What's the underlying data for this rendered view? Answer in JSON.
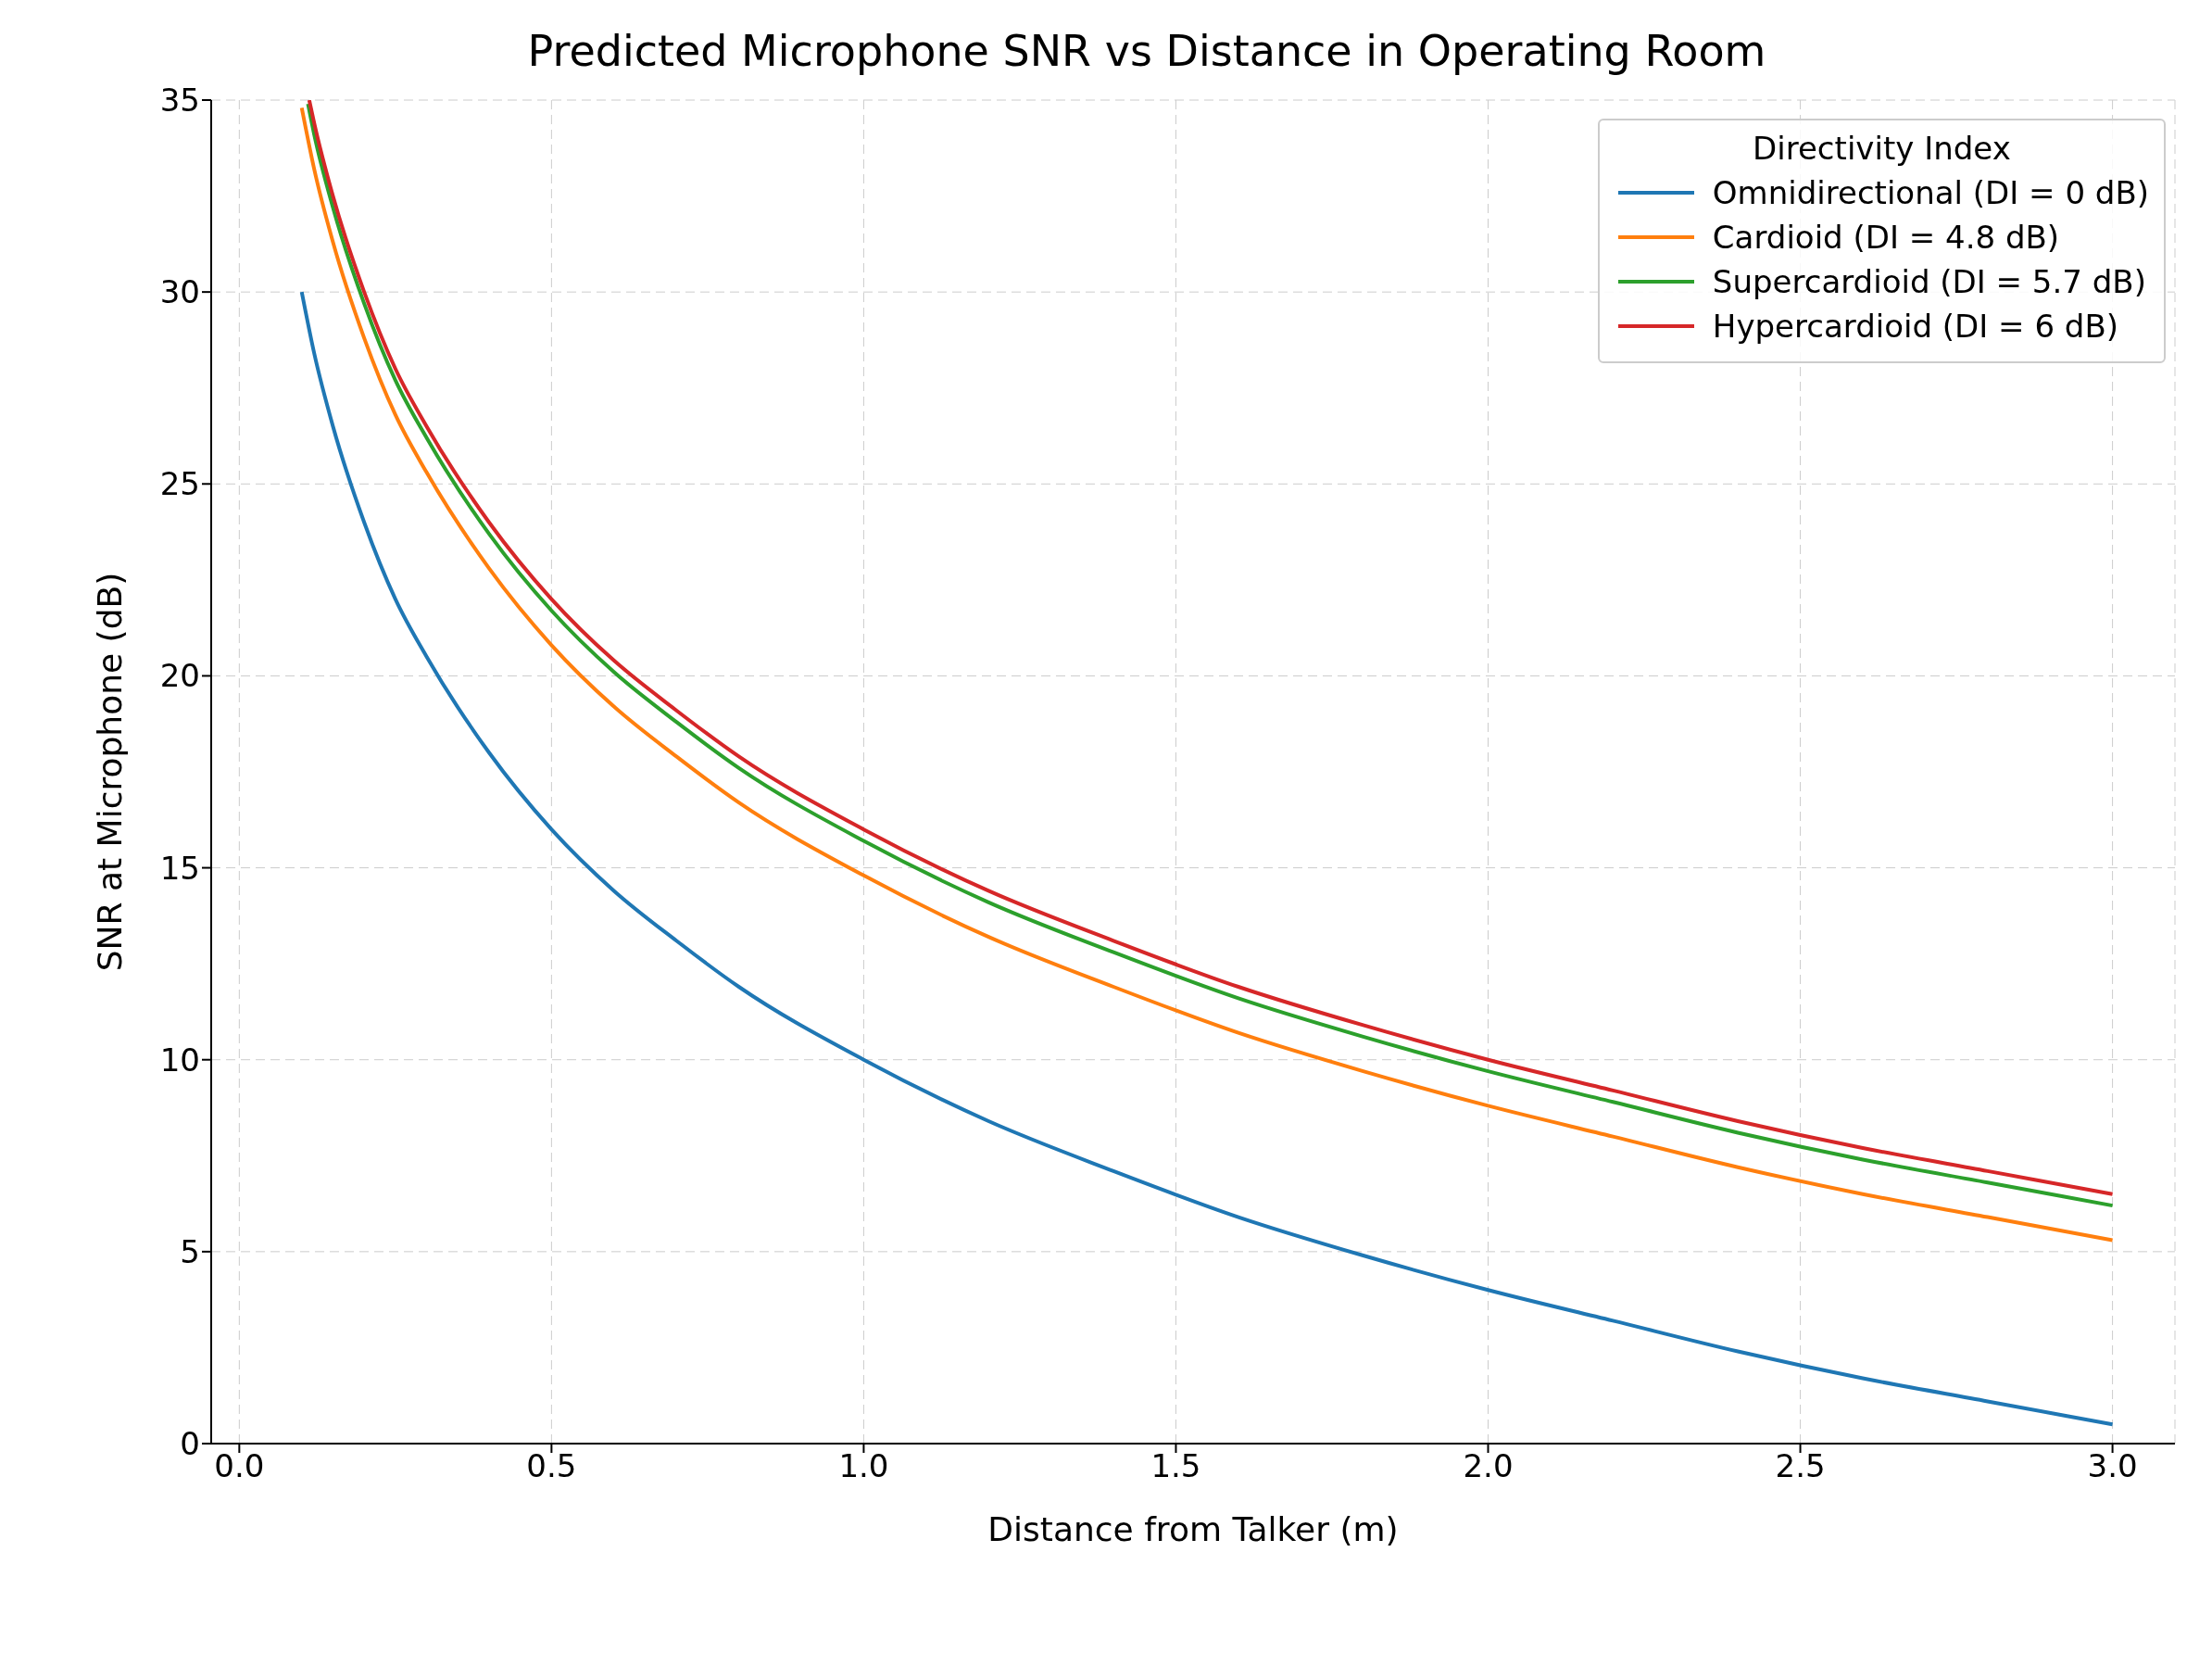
{
  "chart_data": {
    "type": "line",
    "title": "Predicted Microphone SNR vs Distance in Operating Room",
    "xlabel": "Distance from Talker (m)",
    "ylabel": "SNR at Microphone (dB)",
    "legend_title": "Directivity Index",
    "xlim": [
      -0.045,
      3.1
    ],
    "xticks": [
      {
        "value": 0,
        "label": "0.0"
      },
      0.5,
      {
        "value": 1,
        "label": "1.0"
      },
      1.5,
      {
        "value": 2,
        "label": "2.0"
      },
      2.5,
      {
        "value": 3,
        "label": "3.0"
      }
    ],
    "ylim": [
      0,
      35
    ],
    "yticks": [
      0,
      5,
      10,
      15,
      20,
      25,
      30,
      35
    ],
    "grid": true,
    "legend": "top right",
    "marker": "none",
    "line_style": "solid",
    "series": [
      {
        "name": "Omnidirectional (DI = 0 dB)",
        "color": "#1f77b4",
        "x": [
          0.1,
          0.12,
          0.15,
          0.2,
          0.25,
          0.3,
          0.4,
          0.5,
          0.6,
          0.7,
          0.8,
          1.0,
          1.2,
          1.4,
          1.6,
          1.8,
          2.0,
          2.2,
          2.4,
          2.6,
          2.8,
          3.0
        ],
        "values": [
          30,
          28.4,
          26.5,
          24.0,
          22.0,
          20.5,
          18.0,
          16.0,
          14.4,
          13.1,
          11.9,
          10.0,
          8.4,
          7.1,
          5.9,
          4.9,
          4.0,
          3.2,
          2.4,
          1.7,
          1.1,
          0.5
        ]
      },
      {
        "name": "Cardioid (DI = 4.8 dB)",
        "color": "#ff7f0e",
        "x": [
          0.1,
          0.12,
          0.15,
          0.2,
          0.25,
          0.3,
          0.4,
          0.5,
          0.6,
          0.7,
          0.8,
          1.0,
          1.2,
          1.4,
          1.6,
          1.8,
          2.0,
          2.2,
          2.4,
          2.6,
          2.8,
          3.0
        ],
        "values": [
          34.8,
          33.2,
          31.3,
          28.8,
          26.8,
          25.3,
          22.8,
          20.8,
          19.2,
          17.9,
          16.7,
          14.8,
          13.2,
          11.9,
          10.7,
          9.7,
          8.8,
          8.0,
          7.2,
          6.5,
          5.9,
          5.3
        ]
      },
      {
        "name": "Supercardioid (DI = 5.7 dB)",
        "color": "#2ca02c",
        "x": [
          0.11,
          0.12,
          0.15,
          0.2,
          0.25,
          0.3,
          0.4,
          0.5,
          0.6,
          0.7,
          0.8,
          1.0,
          1.2,
          1.4,
          1.6,
          1.8,
          2.0,
          2.2,
          2.4,
          2.6,
          2.8,
          3.0
        ],
        "values": [
          34.9,
          34.1,
          32.2,
          29.7,
          27.7,
          26.2,
          23.7,
          21.7,
          20.1,
          18.8,
          17.6,
          15.7,
          14.1,
          12.8,
          11.6,
          10.6,
          9.7,
          8.9,
          8.1,
          7.4,
          6.8,
          6.2
        ]
      },
      {
        "name": "Hypercardioid (DI = 6 dB)",
        "color": "#d62728",
        "x": [
          0.112,
          0.12,
          0.15,
          0.2,
          0.25,
          0.3,
          0.4,
          0.5,
          0.6,
          0.7,
          0.8,
          1.0,
          1.2,
          1.4,
          1.6,
          1.8,
          2.0,
          2.2,
          2.4,
          2.6,
          2.8,
          3.0
        ],
        "values": [
          35.0,
          34.4,
          32.5,
          30.0,
          28.0,
          26.5,
          24.0,
          22.0,
          20.4,
          19.1,
          17.9,
          16.0,
          14.4,
          13.1,
          11.9,
          10.9,
          10.0,
          9.2,
          8.4,
          7.7,
          7.1,
          6.5
        ]
      }
    ]
  }
}
